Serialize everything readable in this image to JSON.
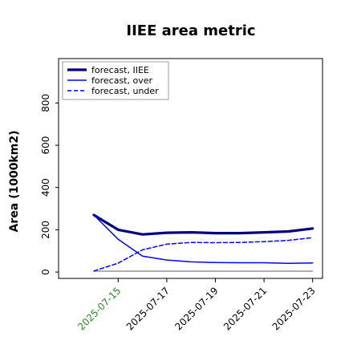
{
  "chart_data": {
    "type": "line",
    "title": "IIEE area metric",
    "xlabel": "",
    "ylabel": "Area (1000km2)",
    "x": [
      "2025-07-14",
      "2025-07-15",
      "2025-07-16",
      "2025-07-17",
      "2025-07-18",
      "2025-07-19",
      "2025-07-20",
      "2025-07-21",
      "2025-07-22",
      "2025-07-23"
    ],
    "x_ticks": [
      "2025-07-15",
      "2025-07-17",
      "2025-07-19",
      "2025-07-21",
      "2025-07-23"
    ],
    "y_ticks": [
      0,
      200,
      400,
      600,
      800
    ],
    "ylim": [
      -30,
      1010
    ],
    "grid": false,
    "legend_placement": "top-left",
    "series": [
      {
        "name": "forecast, IIEE",
        "color": "#00007f",
        "style": "thick",
        "values": [
          270,
          200,
          178,
          186,
          188,
          184,
          184,
          188,
          192,
          206
        ]
      },
      {
        "name": "forecast, over",
        "color": "#0000ff",
        "style": "solid",
        "values": [
          270,
          155,
          75,
          57,
          48,
          45,
          44,
          44,
          41,
          43
        ]
      },
      {
        "name": "forecast, under",
        "color": "#0000ff",
        "style": "dashed",
        "values": [
          5,
          42,
          105,
          132,
          140,
          139,
          140,
          144,
          150,
          163
        ]
      }
    ],
    "baseline": {
      "color": "#808080",
      "value": 0
    }
  }
}
